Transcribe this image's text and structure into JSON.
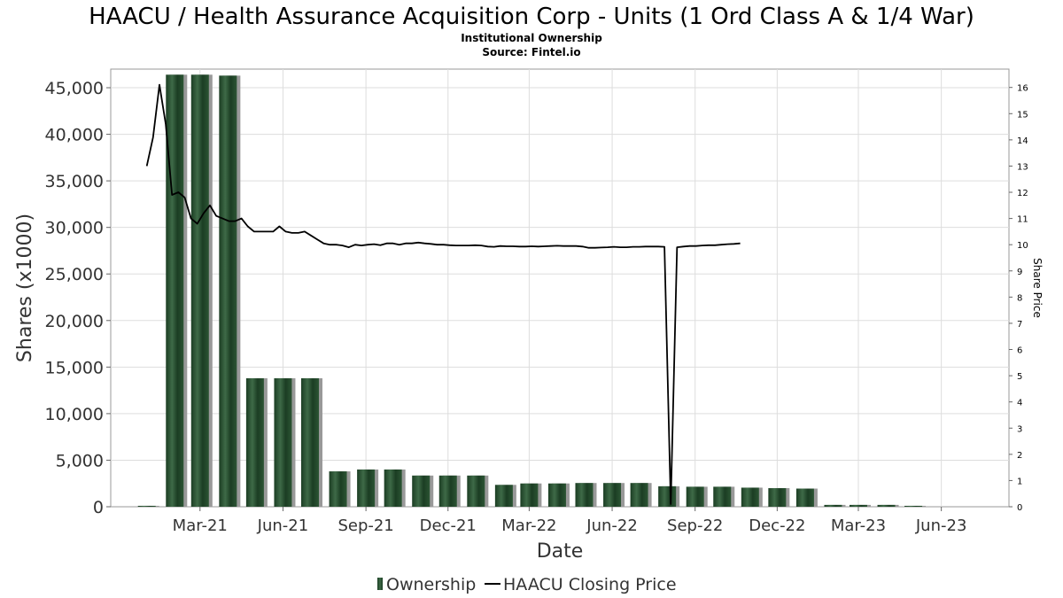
{
  "header": {
    "title": "HAACU / Health Assurance Acquisition Corp - Units (1 Ord Class A & 1/4 War)",
    "subtitle": "Institutional Ownership",
    "source": "Source: Fintel.io"
  },
  "colors": {
    "bar_dark": "#1b3d23",
    "bar_light": "#3e6a47",
    "bar_shadow": "#999999",
    "price_line": "#000000",
    "grid": "#dddddd"
  },
  "chart_data": {
    "type": "bar",
    "xlabel": "Date",
    "ylabel": "Shares (x1000)",
    "y2label": "Share Price",
    "ylim": [
      0,
      47000
    ],
    "y2lim": [
      0,
      16.7
    ],
    "yticks": [
      0,
      5000,
      10000,
      15000,
      20000,
      25000,
      30000,
      35000,
      40000,
      45000
    ],
    "ytick_labels": [
      "0",
      "5,000",
      "10,000",
      "15,000",
      "20,000",
      "25,000",
      "30,000",
      "35,000",
      "40,000",
      "45,000"
    ],
    "y2ticks": [
      0,
      1,
      2,
      3,
      4,
      5,
      6,
      7,
      8,
      9,
      10,
      11,
      12,
      13,
      14,
      15,
      16
    ],
    "xlim": [
      "2020-11-22",
      "2023-08-15"
    ],
    "xticks": [
      {
        "date": "2021-03-01",
        "label": "Mar-21"
      },
      {
        "date": "2021-06-01",
        "label": "Jun-21"
      },
      {
        "date": "2021-09-01",
        "label": "Sep-21"
      },
      {
        "date": "2021-12-01",
        "label": "Dec-21"
      },
      {
        "date": "2022-03-01",
        "label": "Mar-22"
      },
      {
        "date": "2022-06-01",
        "label": "Jun-22"
      },
      {
        "date": "2022-09-01",
        "label": "Sep-22"
      },
      {
        "date": "2022-12-01",
        "label": "Dec-22"
      },
      {
        "date": "2023-03-01",
        "label": "Mar-23"
      },
      {
        "date": "2023-06-01",
        "label": "Jun-23"
      }
    ],
    "grid": true,
    "legend_position": "bottom-center",
    "series": [
      {
        "name": "Ownership",
        "type": "bar",
        "axis": "left",
        "points": [
          {
            "x": "2021-01-01",
            "y": 100
          },
          {
            "x": "2021-02-01",
            "y": 46400
          },
          {
            "x": "2021-03-01",
            "y": 46400
          },
          {
            "x": "2021-04-01",
            "y": 46300
          },
          {
            "x": "2021-05-01",
            "y": 13800
          },
          {
            "x": "2021-06-01",
            "y": 13800
          },
          {
            "x": "2021-07-01",
            "y": 13800
          },
          {
            "x": "2021-08-01",
            "y": 3800
          },
          {
            "x": "2021-09-01",
            "y": 4000
          },
          {
            "x": "2021-10-01",
            "y": 4000
          },
          {
            "x": "2021-11-01",
            "y": 3350
          },
          {
            "x": "2021-12-01",
            "y": 3350
          },
          {
            "x": "2022-01-01",
            "y": 3350
          },
          {
            "x": "2022-02-01",
            "y": 2350
          },
          {
            "x": "2022-03-01",
            "y": 2500
          },
          {
            "x": "2022-04-01",
            "y": 2500
          },
          {
            "x": "2022-05-01",
            "y": 2550
          },
          {
            "x": "2022-06-01",
            "y": 2550
          },
          {
            "x": "2022-07-01",
            "y": 2550
          },
          {
            "x": "2022-08-01",
            "y": 2200
          },
          {
            "x": "2022-09-01",
            "y": 2150
          },
          {
            "x": "2022-10-01",
            "y": 2150
          },
          {
            "x": "2022-11-01",
            "y": 2050
          },
          {
            "x": "2022-12-01",
            "y": 2000
          },
          {
            "x": "2023-01-01",
            "y": 1950
          },
          {
            "x": "2023-02-01",
            "y": 200
          },
          {
            "x": "2023-03-01",
            "y": 200
          },
          {
            "x": "2023-04-01",
            "y": 200
          },
          {
            "x": "2023-05-01",
            "y": 100
          }
        ]
      },
      {
        "name": "HAACU Closing Price",
        "type": "line",
        "axis": "right",
        "points": [
          {
            "x": "2021-01-01",
            "y": 13.0
          },
          {
            "x": "2021-01-08",
            "y": 14.1
          },
          {
            "x": "2021-01-15",
            "y": 16.1
          },
          {
            "x": "2021-01-22",
            "y": 14.6
          },
          {
            "x": "2021-01-29",
            "y": 11.9
          },
          {
            "x": "2021-02-05",
            "y": 12.0
          },
          {
            "x": "2021-02-12",
            "y": 11.8
          },
          {
            "x": "2021-02-19",
            "y": 11.0
          },
          {
            "x": "2021-02-26",
            "y": 10.8
          },
          {
            "x": "2021-03-05",
            "y": 11.2
          },
          {
            "x": "2021-03-12",
            "y": 11.5
          },
          {
            "x": "2021-03-19",
            "y": 11.1
          },
          {
            "x": "2021-03-26",
            "y": 11.0
          },
          {
            "x": "2021-04-02",
            "y": 10.9
          },
          {
            "x": "2021-04-09",
            "y": 10.9
          },
          {
            "x": "2021-04-16",
            "y": 11.0
          },
          {
            "x": "2021-04-23",
            "y": 10.7
          },
          {
            "x": "2021-04-30",
            "y": 10.5
          },
          {
            "x": "2021-05-07",
            "y": 10.5
          },
          {
            "x": "2021-05-14",
            "y": 10.5
          },
          {
            "x": "2021-05-21",
            "y": 10.5
          },
          {
            "x": "2021-05-28",
            "y": 10.7
          },
          {
            "x": "2021-06-04",
            "y": 10.5
          },
          {
            "x": "2021-06-11",
            "y": 10.45
          },
          {
            "x": "2021-06-18",
            "y": 10.45
          },
          {
            "x": "2021-06-25",
            "y": 10.5
          },
          {
            "x": "2021-07-02",
            "y": 10.35
          },
          {
            "x": "2021-07-09",
            "y": 10.2
          },
          {
            "x": "2021-07-16",
            "y": 10.05
          },
          {
            "x": "2021-07-23",
            "y": 10.0
          },
          {
            "x": "2021-07-30",
            "y": 10.0
          },
          {
            "x": "2021-08-06",
            "y": 9.97
          },
          {
            "x": "2021-08-13",
            "y": 9.9
          },
          {
            "x": "2021-08-20",
            "y": 10.0
          },
          {
            "x": "2021-08-27",
            "y": 9.97
          },
          {
            "x": "2021-09-03",
            "y": 10.0
          },
          {
            "x": "2021-09-10",
            "y": 10.02
          },
          {
            "x": "2021-09-17",
            "y": 9.98
          },
          {
            "x": "2021-09-24",
            "y": 10.05
          },
          {
            "x": "2021-10-01",
            "y": 10.05
          },
          {
            "x": "2021-10-08",
            "y": 10.0
          },
          {
            "x": "2021-10-15",
            "y": 10.05
          },
          {
            "x": "2021-10-22",
            "y": 10.05
          },
          {
            "x": "2021-10-29",
            "y": 10.08
          },
          {
            "x": "2021-11-05",
            "y": 10.05
          },
          {
            "x": "2021-11-12",
            "y": 10.03
          },
          {
            "x": "2021-11-19",
            "y": 10.0
          },
          {
            "x": "2021-11-26",
            "y": 10.0
          },
          {
            "x": "2021-12-03",
            "y": 9.98
          },
          {
            "x": "2021-12-10",
            "y": 9.97
          },
          {
            "x": "2021-12-17",
            "y": 9.97
          },
          {
            "x": "2021-12-24",
            "y": 9.97
          },
          {
            "x": "2021-12-31",
            "y": 9.98
          },
          {
            "x": "2022-01-07",
            "y": 9.97
          },
          {
            "x": "2022-01-14",
            "y": 9.93
          },
          {
            "x": "2022-01-21",
            "y": 9.92
          },
          {
            "x": "2022-01-28",
            "y": 9.95
          },
          {
            "x": "2022-02-04",
            "y": 9.94
          },
          {
            "x": "2022-02-11",
            "y": 9.94
          },
          {
            "x": "2022-02-18",
            "y": 9.93
          },
          {
            "x": "2022-02-25",
            "y": 9.93
          },
          {
            "x": "2022-03-04",
            "y": 9.94
          },
          {
            "x": "2022-03-11",
            "y": 9.93
          },
          {
            "x": "2022-03-18",
            "y": 9.94
          },
          {
            "x": "2022-03-25",
            "y": 9.95
          },
          {
            "x": "2022-04-01",
            "y": 9.96
          },
          {
            "x": "2022-04-08",
            "y": 9.95
          },
          {
            "x": "2022-04-15",
            "y": 9.95
          },
          {
            "x": "2022-04-22",
            "y": 9.95
          },
          {
            "x": "2022-04-29",
            "y": 9.93
          },
          {
            "x": "2022-05-06",
            "y": 9.88
          },
          {
            "x": "2022-05-13",
            "y": 9.88
          },
          {
            "x": "2022-05-20",
            "y": 9.89
          },
          {
            "x": "2022-05-27",
            "y": 9.9
          },
          {
            "x": "2022-06-03",
            "y": 9.92
          },
          {
            "x": "2022-06-10",
            "y": 9.9
          },
          {
            "x": "2022-06-17",
            "y": 9.9
          },
          {
            "x": "2022-06-24",
            "y": 9.92
          },
          {
            "x": "2022-07-01",
            "y": 9.92
          },
          {
            "x": "2022-07-08",
            "y": 9.93
          },
          {
            "x": "2022-07-15",
            "y": 9.93
          },
          {
            "x": "2022-07-22",
            "y": 9.93
          },
          {
            "x": "2022-07-29",
            "y": 9.92
          },
          {
            "x": "2022-08-05",
            "y": 0.1
          },
          {
            "x": "2022-08-12",
            "y": 9.9
          },
          {
            "x": "2022-08-19",
            "y": 9.93
          },
          {
            "x": "2022-08-26",
            "y": 9.95
          },
          {
            "x": "2022-09-02",
            "y": 9.95
          },
          {
            "x": "2022-09-09",
            "y": 9.97
          },
          {
            "x": "2022-09-16",
            "y": 9.98
          },
          {
            "x": "2022-09-23",
            "y": 9.98
          },
          {
            "x": "2022-09-30",
            "y": 10.0
          },
          {
            "x": "2022-10-07",
            "y": 10.02
          },
          {
            "x": "2022-10-14",
            "y": 10.03
          },
          {
            "x": "2022-10-21",
            "y": 10.05
          }
        ]
      }
    ]
  }
}
